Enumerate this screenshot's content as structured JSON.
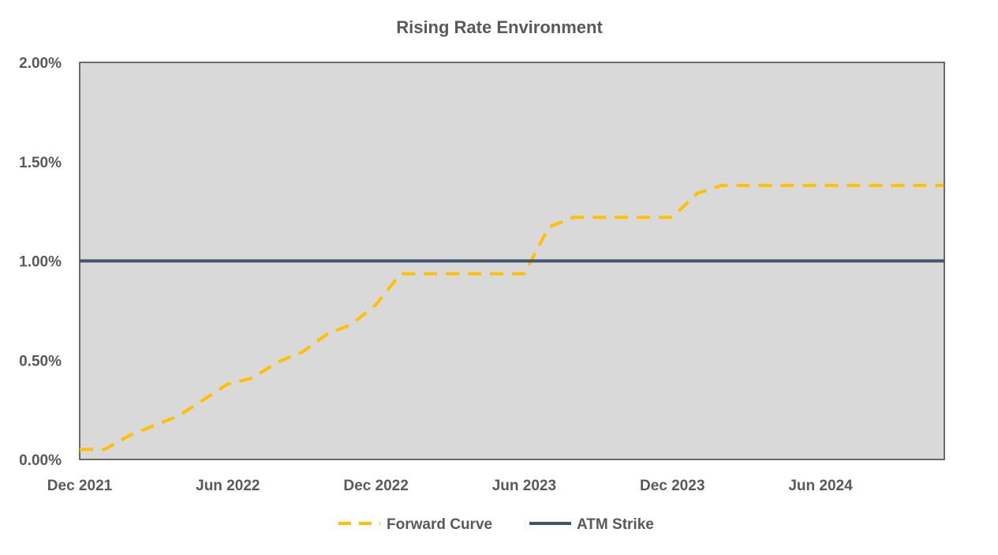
{
  "chart_data": {
    "type": "line",
    "title": "Rising Rate Environment",
    "xlabel": "",
    "ylabel": "",
    "ylim": [
      0,
      0.02
    ],
    "y_ticks": [
      "0.00%",
      "0.50%",
      "1.00%",
      "1.50%",
      "2.00%"
    ],
    "x_ticks": [
      "Dec 2021",
      "Jun 2022",
      "Dec 2022",
      "Jun 2023",
      "Dec 2023",
      "Jun 2024"
    ],
    "x": [
      "2021-12",
      "2022-01",
      "2022-02",
      "2022-03",
      "2022-04",
      "2022-05",
      "2022-06",
      "2022-07",
      "2022-08",
      "2022-09",
      "2022-10",
      "2022-11",
      "2022-12",
      "2023-01",
      "2023-02",
      "2023-03",
      "2023-04",
      "2023-05",
      "2023-06",
      "2023-07",
      "2023-08",
      "2023-09",
      "2023-10",
      "2023-11",
      "2023-12",
      "2024-01",
      "2024-02",
      "2024-03",
      "2024-04",
      "2024-05",
      "2024-06",
      "2024-07",
      "2024-08",
      "2024-09",
      "2024-10",
      "2024-11"
    ],
    "grid": false,
    "legend_position": "bottom",
    "background": "#d9d9d9",
    "series": [
      {
        "name": "Forward Curve",
        "style": "dashed",
        "color": "#ffc000",
        "values": [
          0.0005,
          0.0005,
          0.0012,
          0.0017,
          0.0022,
          0.003,
          0.0038,
          0.0041,
          0.0049,
          0.0054,
          0.0063,
          0.0068,
          0.0078,
          0.00935,
          0.00935,
          0.00935,
          0.00935,
          0.00935,
          0.00935,
          0.0117,
          0.0122,
          0.0122,
          0.0122,
          0.0122,
          0.0122,
          0.0134,
          0.0138,
          0.0138,
          0.0138,
          0.0138,
          0.0138,
          0.0138,
          0.0138,
          0.0138,
          0.0138,
          0.0138
        ]
      },
      {
        "name": "ATM Strike",
        "style": "solid",
        "color": "#44546a",
        "values": [
          0.01,
          0.01,
          0.01,
          0.01,
          0.01,
          0.01,
          0.01,
          0.01,
          0.01,
          0.01,
          0.01,
          0.01,
          0.01,
          0.01,
          0.01,
          0.01,
          0.01,
          0.01,
          0.01,
          0.01,
          0.01,
          0.01,
          0.01,
          0.01,
          0.01,
          0.01,
          0.01,
          0.01,
          0.01,
          0.01,
          0.01,
          0.01,
          0.01,
          0.01,
          0.01,
          0.01
        ]
      }
    ]
  }
}
